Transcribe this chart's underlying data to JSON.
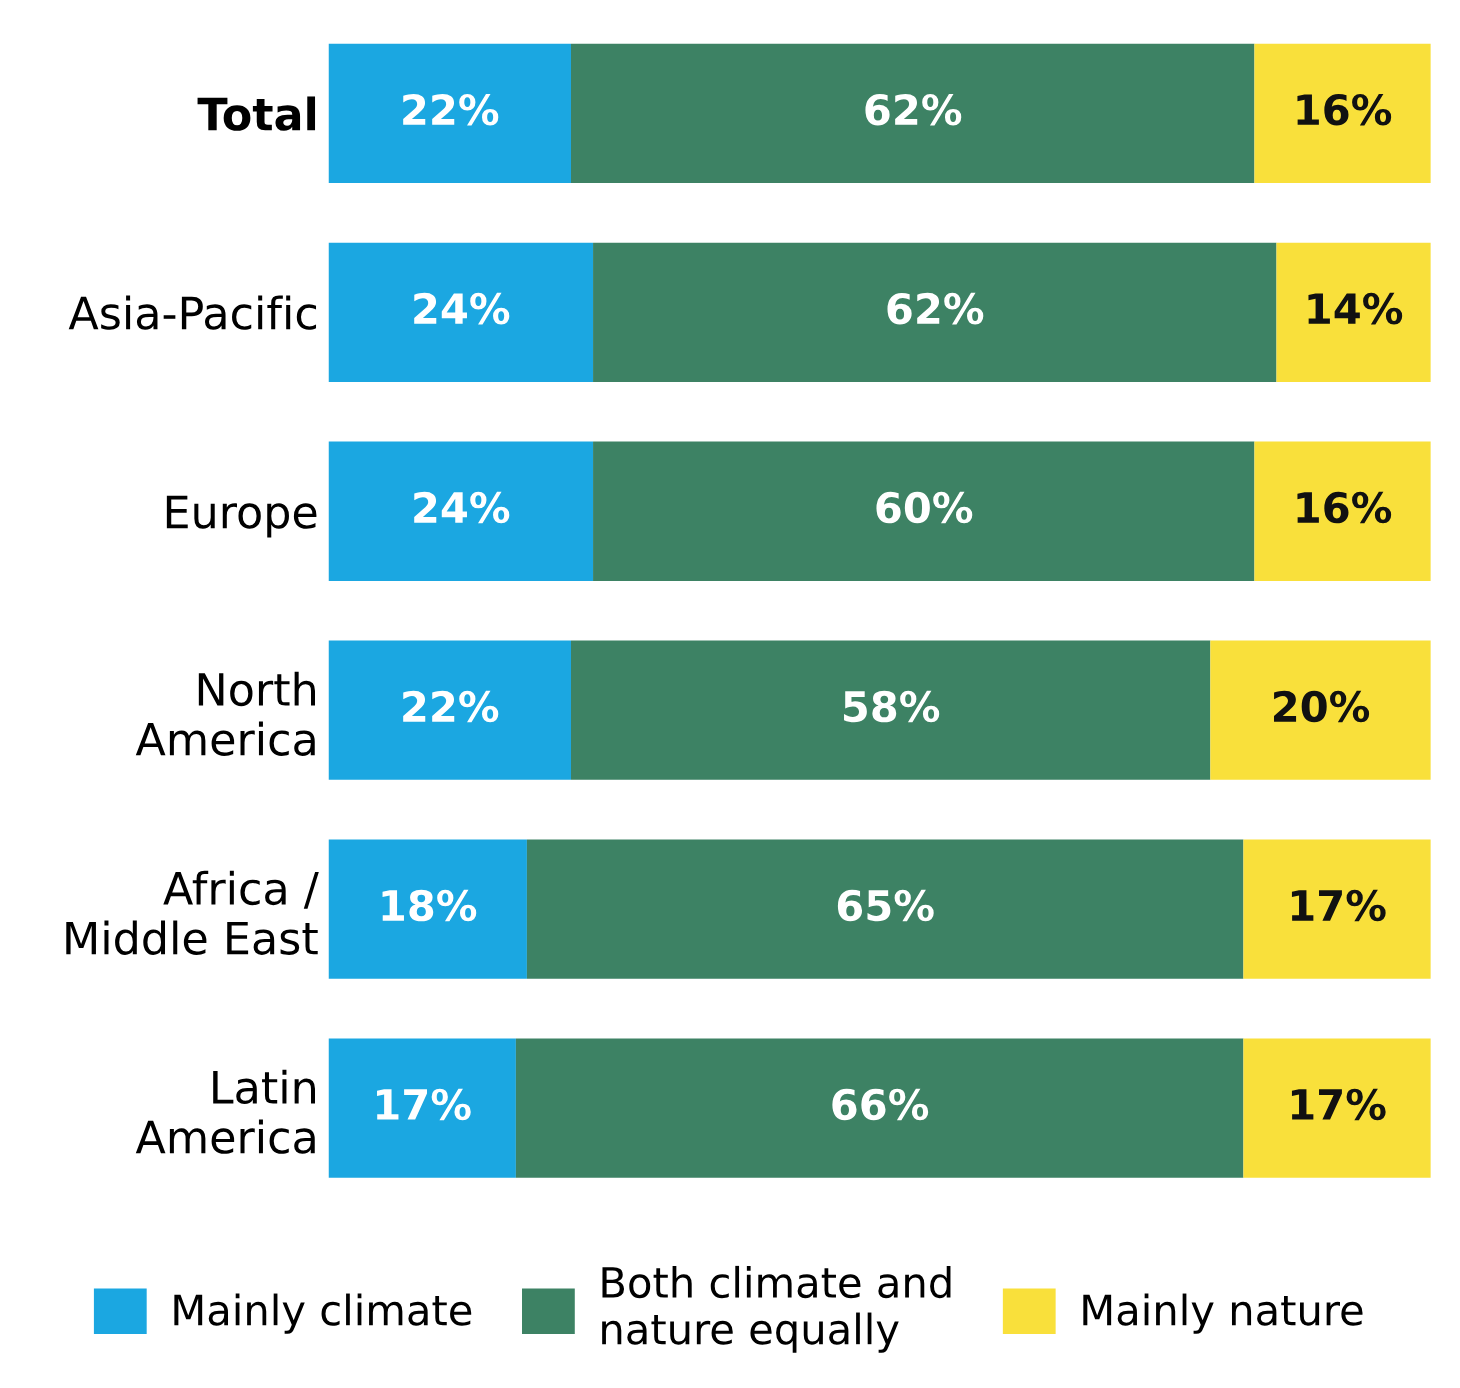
{
  "chart_data": {
    "type": "bar",
    "orientation": "horizontal",
    "stacked": true,
    "categories": [
      "Total",
      "Asia-Pacific",
      "Europe",
      "North\nAmerica",
      "Africa /\nMiddle East",
      "Latin\nAmerica"
    ],
    "series": [
      {
        "name": "Mainly climate",
        "color": "#1ba7e1",
        "values": [
          22,
          24,
          24,
          22,
          18,
          17
        ],
        "value_labels": [
          "22%",
          "24%",
          "24%",
          "22%",
          "18%",
          "17%"
        ]
      },
      {
        "name": "Both climate and\nnature equally",
        "color": "#3d8264",
        "values": [
          62,
          62,
          60,
          58,
          65,
          66
        ],
        "value_labels": [
          "62%",
          "62%",
          "60%",
          "58%",
          "65%",
          "66%"
        ]
      },
      {
        "name": "Mainly nature",
        "color": "#f9e03b",
        "values": [
          16,
          14,
          16,
          20,
          17,
          17
        ],
        "value_labels": [
          "16%",
          "14%",
          "16%",
          "20%",
          "17%",
          "17%"
        ]
      }
    ],
    "xlim": [
      0,
      100
    ],
    "legend": "bottom",
    "grid": false,
    "tick_labels": "y"
  }
}
